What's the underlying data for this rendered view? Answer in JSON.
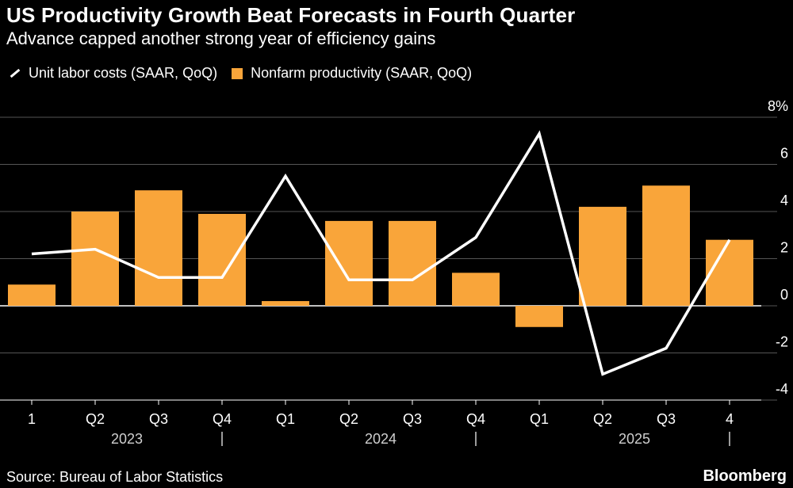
{
  "header": {
    "title": "US Productivity Growth Beat Forecasts in Fourth Quarter",
    "subtitle": "Advance capped another strong year of efficiency gains"
  },
  "legend": {
    "line_label": "Unit labor costs (SAAR, QoQ)",
    "bar_label": "Nonfarm productivity (SAAR, QoQ)"
  },
  "footer": {
    "source": "Source: Bureau of Labor Statistics",
    "brand": "Bloomberg"
  },
  "colors": {
    "bar": "#f9a53a",
    "line": "#ffffff",
    "grid": "#555555",
    "background": "#000000"
  },
  "chart_data": {
    "type": "bar",
    "title": "US Productivity Growth Beat Forecasts in Fourth Quarter",
    "categories": [
      "1",
      "Q2",
      "Q3",
      "Q4",
      "Q1",
      "Q2",
      "Q3",
      "Q4",
      "Q1",
      "Q2",
      "Q3",
      "4"
    ],
    "year_labels": [
      {
        "label": "2023",
        "start": 0,
        "end": 3
      },
      {
        "label": "2024",
        "start": 4,
        "end": 7
      },
      {
        "label": "2025",
        "start": 8,
        "end": 11
      }
    ],
    "series": [
      {
        "name": "Nonfarm productivity (SAAR, QoQ)",
        "type": "bar",
        "values": [
          0.9,
          4.0,
          4.9,
          3.9,
          0.2,
          3.6,
          3.6,
          1.4,
          -0.9,
          4.2,
          5.1,
          2.8
        ]
      },
      {
        "name": "Unit labor costs (SAAR, QoQ)",
        "type": "line",
        "values": [
          2.2,
          2.4,
          1.2,
          1.2,
          5.5,
          1.1,
          1.1,
          2.9,
          7.3,
          -2.9,
          -1.8,
          2.8
        ]
      }
    ],
    "y_ticks": [
      "-4",
      "-2",
      "0",
      "2",
      "4",
      "6",
      "8%"
    ],
    "ylim": [
      -4,
      8
    ],
    "xlabel": "",
    "ylabel": ""
  }
}
